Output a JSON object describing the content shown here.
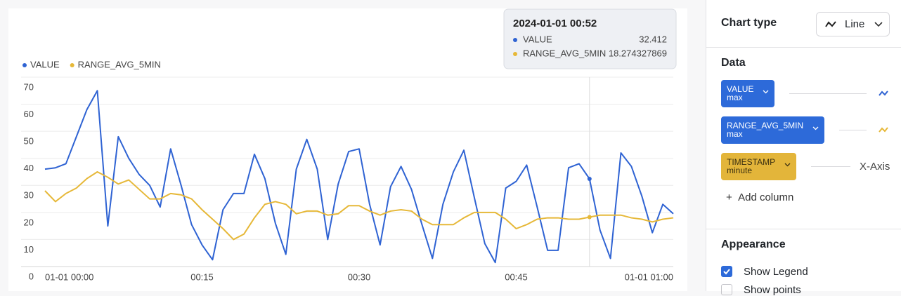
{
  "chart_data": {
    "type": "line",
    "categories": [
      "01-01 00:00",
      null,
      null,
      null,
      null,
      null,
      null,
      null,
      null,
      null,
      null,
      null,
      null,
      null,
      null,
      "00:15",
      null,
      null,
      null,
      null,
      null,
      null,
      null,
      null,
      null,
      null,
      null,
      null,
      null,
      null,
      "00:30",
      null,
      null,
      null,
      null,
      null,
      null,
      null,
      null,
      null,
      null,
      null,
      null,
      null,
      null,
      "00:45",
      null,
      null,
      null,
      null,
      null,
      null,
      null,
      null,
      null,
      null,
      null,
      null,
      null,
      null,
      "01-01 01:00"
    ],
    "series": [
      {
        "name": "VALUE",
        "color": "#2f63d3",
        "values": [
          36,
          36.5,
          38,
          48,
          58,
          65,
          15,
          48,
          40,
          34,
          30,
          22,
          43.5,
          30,
          15.5,
          8,
          2.5,
          21,
          27,
          27,
          41.5,
          32.5,
          16,
          4.5,
          36,
          47,
          36,
          10,
          30.5,
          42.5,
          43.5,
          23,
          8,
          29.5,
          37,
          28.5,
          15.5,
          3,
          23,
          35,
          43,
          25.5,
          8.5,
          1.5,
          29,
          31.5,
          37.5,
          22,
          6,
          6,
          36.5,
          38,
          32.412,
          13.5,
          3,
          42,
          37,
          26,
          12.5,
          23,
          19.5
        ]
      },
      {
        "name": "RANGE_AVG_5MIN",
        "color": "#e6b838",
        "values": [
          28,
          24,
          27,
          29,
          32.5,
          35,
          33,
          30.5,
          32,
          28.5,
          25,
          25,
          27,
          26.5,
          25,
          21,
          17.5,
          14,
          10,
          12,
          18,
          23,
          24,
          23,
          19.5,
          20.5,
          20.5,
          19,
          19.5,
          22.5,
          22.5,
          20.5,
          19,
          20.5,
          21,
          20.5,
          17.5,
          15.5,
          15.5,
          15.5,
          18,
          20,
          20,
          20,
          17.5,
          14,
          15.5,
          17.5,
          18,
          18,
          17.5,
          17.5,
          18.274327869,
          19,
          19,
          19,
          18,
          17.5,
          16.5,
          17.5,
          18
        ]
      }
    ],
    "ylim": [
      0,
      70
    ],
    "yticks": [
      0,
      10,
      20,
      30,
      40,
      50,
      60,
      70
    ],
    "grid": true,
    "legend": "top-left",
    "tooltip": {
      "title": "2024-01-01 00:52",
      "index": 52
    }
  },
  "panel": {
    "chart_type": {
      "label": "Chart type",
      "value": "Line"
    },
    "data": {
      "title": "Data",
      "columns": [
        {
          "name": "VALUE",
          "agg": "max"
        },
        {
          "name": "RANGE_AVG_5MIN",
          "agg": "max"
        },
        {
          "name": "TIMESTAMP",
          "agg": "minute",
          "role": "X-Axis"
        }
      ],
      "add": "Add column"
    },
    "appearance": {
      "title": "Appearance",
      "options": [
        {
          "label": "Show Legend",
          "checked": true
        },
        {
          "label": "Show points",
          "checked": false
        }
      ]
    }
  }
}
